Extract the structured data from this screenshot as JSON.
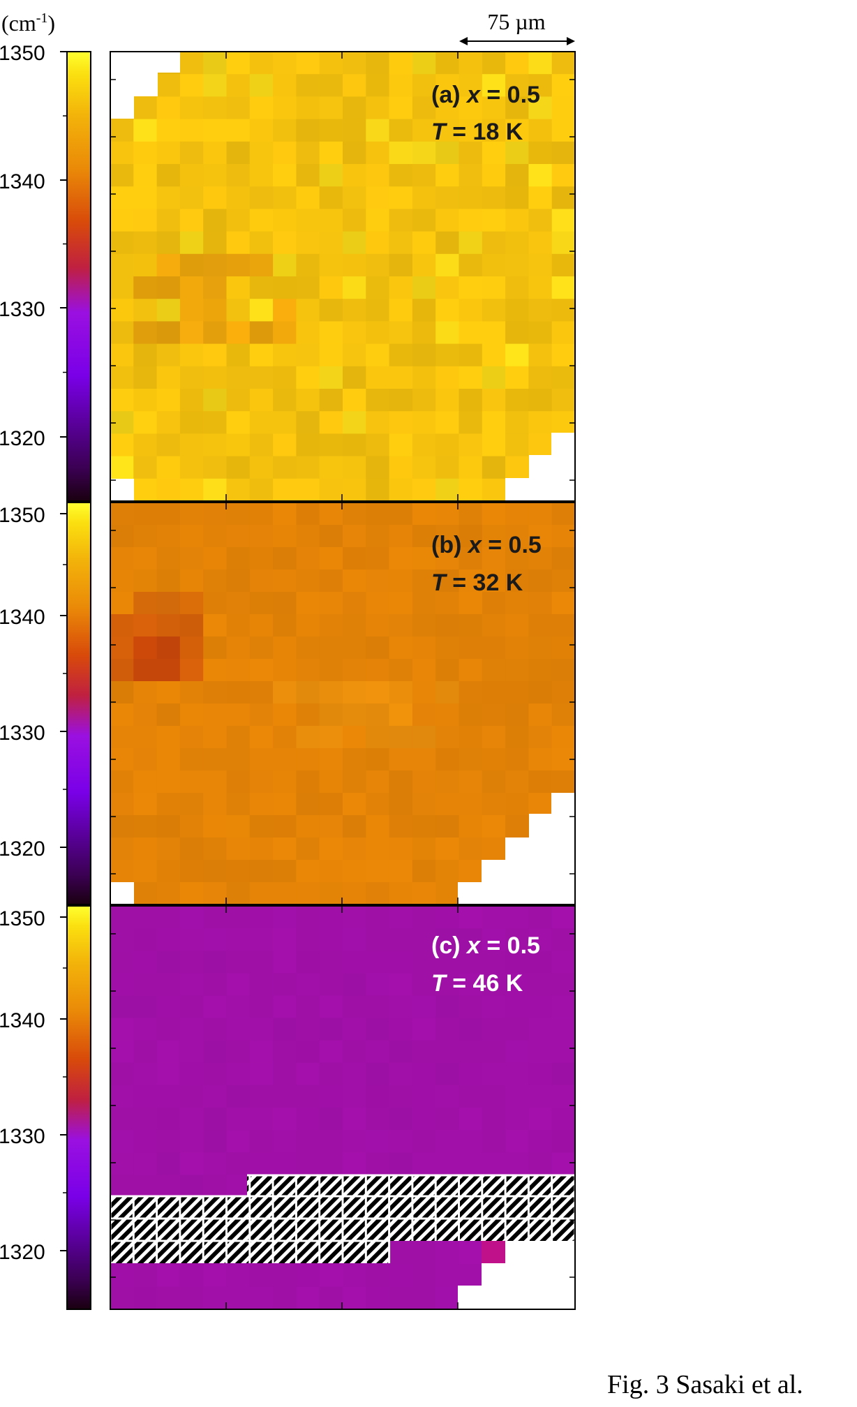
{
  "caption": "Fig. 3 Sasaki et al.",
  "colors": {
    "panel_a_base": "#f5c20e",
    "panel_b_base": "#e58407",
    "panel_c_base": "#a010a8",
    "colormap": [
      "#1a0010",
      "#3a0050",
      "#7a00e8",
      "#9a10e0",
      "#c02040",
      "#d84a0a",
      "#ea8a08",
      "#f3b40a",
      "#fbe010",
      "#ffff30"
    ]
  },
  "chart_data": {
    "type": "heatmap",
    "scale_bar": "75 µm",
    "colorbar": {
      "unit": "(cm-1)",
      "unit_base": "(cm",
      "unit_sup": "-1",
      "unit_close": ")",
      "range": [
        1314,
        1350
      ],
      "tick_labels": [
        "1350",
        "1340",
        "1330",
        "1320"
      ],
      "tick_values": [
        1350,
        1340,
        1330,
        1320
      ]
    },
    "panels": [
      {
        "id": "a",
        "label_prefix": "(a) ",
        "label_var": "x",
        "label_eq": " = 0.5",
        "temp_var": "T",
        "temp_eq": " = 18 K",
        "x": 0.5,
        "T_K": 18,
        "typical_value": 1345
      },
      {
        "id": "b",
        "label_prefix": "(b) ",
        "label_var": "x",
        "label_eq": " = 0.5",
        "temp_var": "T",
        "temp_eq": " = 32 K",
        "x": 0.5,
        "T_K": 32,
        "typical_value": 1338
      },
      {
        "id": "c",
        "label_prefix": "(c) ",
        "label_var": "x",
        "label_eq": " = 0.5",
        "temp_var": "T",
        "temp_eq": " = 46 K",
        "x": 0.5,
        "T_K": 46,
        "typical_value": 1327
      }
    ]
  }
}
